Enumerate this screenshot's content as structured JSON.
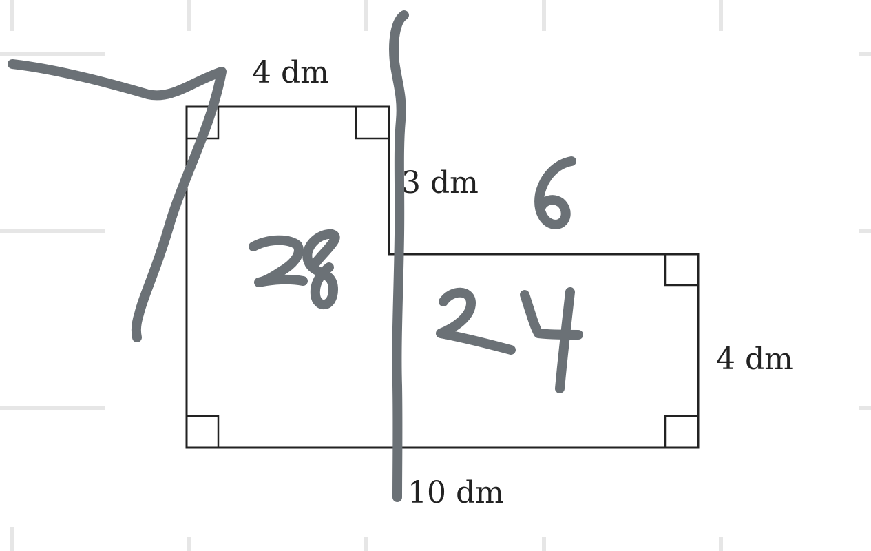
{
  "figure": {
    "dimension_labels": {
      "top_width": "4 dm",
      "step_height": "3 dm",
      "right_height": "4 dm",
      "bottom_width": "10 dm"
    },
    "handwriting": {
      "left_area": "28",
      "step_annotation": "6",
      "right_area": "24"
    }
  },
  "colors": {
    "grid": "#e6e6e6",
    "outline": "#222222",
    "ink": "#6b7176",
    "background": "#ffffff"
  }
}
